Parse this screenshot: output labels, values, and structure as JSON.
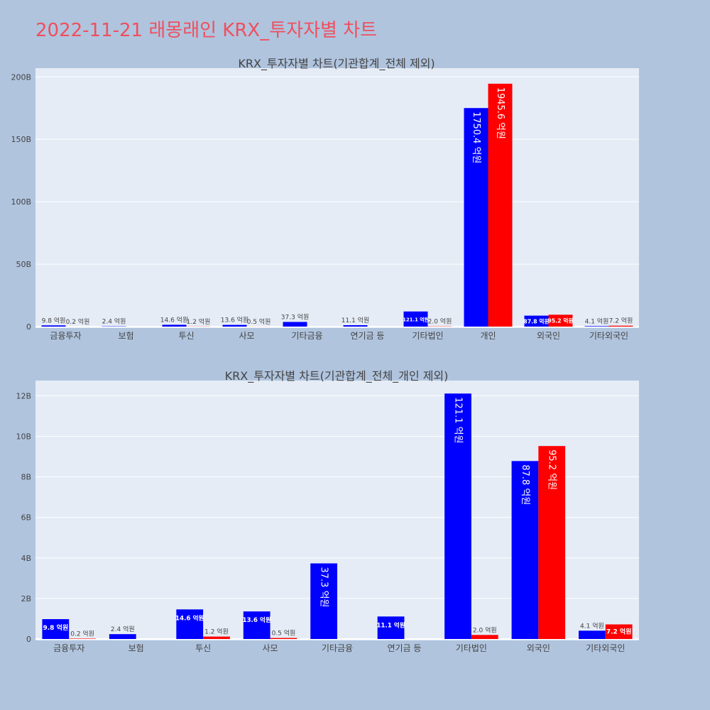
{
  "page": {
    "title": "2022-11-21 래몽래인 KRX_투자자별 차트",
    "title_color": "#ef4f5e",
    "background": "#b0c4de",
    "plot_background": "#e5ecf6"
  },
  "chart_data": [
    {
      "type": "bar",
      "title": "KRX_투자자별 차트(기관합계_전체 제외)",
      "categories": [
        "금융투자",
        "보험",
        "투신",
        "사모",
        "기타금융",
        "연기금 등",
        "기타법인",
        "개인",
        "외국인",
        "기타외국인"
      ],
      "yticks": [
        "0",
        "50B",
        "100B",
        "150B",
        "200B"
      ],
      "ylim": [
        0,
        207
      ],
      "series": [
        {
          "color": "#0000ff",
          "values": [
            0.98,
            0.24,
            1.46,
            1.36,
            3.73,
            1.11,
            12.11,
            175.04,
            8.78,
            0.41
          ],
          "labels": [
            "9.8 억원",
            "2.4 억원",
            "14.6 억원",
            "13.6 억원",
            "37.3 억원",
            "11.1 억원",
            "121.1 억원",
            "1750.4 억원",
            "87.8 억원",
            "4.1 억원"
          ]
        },
        {
          "color": "#ff0000",
          "values": [
            0.02,
            0,
            0.12,
            0.05,
            0,
            0,
            0.2,
            194.56,
            9.52,
            0.72
          ],
          "labels": [
            "0.2 억원",
            "",
            "1.2 억원",
            "0.5 억원",
            "",
            "",
            "2.0 억원",
            "1945.6 억원",
            "95.2 억원",
            "7.2 억원"
          ]
        }
      ]
    },
    {
      "type": "bar",
      "title": "KRX_투자자별 차트(기관합계_전체_개인 제외)",
      "categories": [
        "금융투자",
        "보험",
        "투신",
        "사모",
        "기타금융",
        "연기금 등",
        "기타법인",
        "외국인",
        "기타외국인"
      ],
      "yticks": [
        "0",
        "2B",
        "4B",
        "6B",
        "8B",
        "10B",
        "12B"
      ],
      "ylim": [
        0,
        12.75
      ],
      "series": [
        {
          "color": "#0000ff",
          "values": [
            0.98,
            0.24,
            1.46,
            1.36,
            3.73,
            1.11,
            12.11,
            8.78,
            0.41
          ],
          "labels": [
            "9.8 억원",
            "2.4 억원",
            "14.6 억원",
            "13.6 억원",
            "37.3 억원",
            "11.1 억원",
            "121.1 억원",
            "87.8 억원",
            "4.1 억원"
          ]
        },
        {
          "color": "#ff0000",
          "values": [
            0.02,
            0,
            0.12,
            0.05,
            0,
            0,
            0.2,
            9.52,
            0.72
          ],
          "labels": [
            "0.2 억원",
            "",
            "1.2 억원",
            "0.5 억원",
            "",
            "",
            "2.0 억원",
            "95.2 억원",
            "7.2 억원"
          ]
        }
      ]
    }
  ]
}
